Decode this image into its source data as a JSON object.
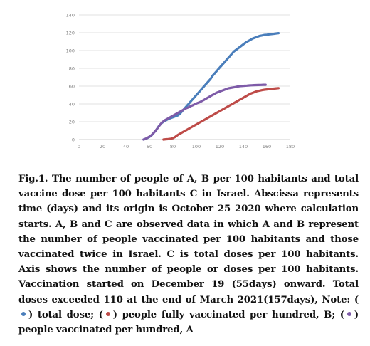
{
  "chart_data": {
    "type": "line",
    "xlim": [
      0,
      180
    ],
    "ylim": [
      0,
      140
    ],
    "x_ticks": [
      0,
      20,
      40,
      60,
      80,
      100,
      120,
      140,
      160,
      180
    ],
    "y_ticks": [
      0,
      20,
      40,
      60,
      80,
      100,
      120,
      140
    ],
    "grid": "horizontal",
    "legend": "none",
    "series": [
      {
        "key": "total_doses",
        "color": "#4a7ebb",
        "x": [
          55,
          58,
          60,
          62,
          64,
          66,
          68,
          70,
          72,
          74,
          76,
          78,
          80,
          82,
          84,
          86,
          88,
          90,
          92,
          94,
          96,
          98,
          100,
          102,
          104,
          106,
          108,
          110,
          112,
          114,
          116,
          118,
          120,
          122,
          124,
          126,
          128,
          130,
          132,
          134,
          136,
          138,
          140,
          142,
          144,
          146,
          148,
          150,
          152,
          154,
          156,
          158,
          160,
          162,
          164,
          166,
          168,
          170
        ],
        "y": [
          0,
          1.5,
          3,
          5,
          8,
          11,
          15,
          18,
          20,
          21.5,
          23,
          24,
          25,
          26,
          27,
          29,
          32,
          35,
          38,
          41,
          44,
          47,
          50,
          53,
          56,
          59,
          62,
          65,
          68,
          72,
          75,
          78,
          81,
          84,
          87,
          90,
          93,
          96,
          99,
          101,
          103,
          105,
          107,
          109,
          110.5,
          112,
          113.5,
          114.5,
          115.5,
          116.5,
          117,
          117.5,
          117.8,
          118.2,
          118.5,
          118.8,
          119.2,
          119.5
        ]
      },
      {
        "key": "fully_vaccinated_B",
        "color": "#be4b48",
        "x": [
          72,
          74,
          76,
          78,
          80,
          82,
          84,
          86,
          88,
          90,
          92,
          94,
          96,
          98,
          100,
          102,
          104,
          106,
          108,
          110,
          112,
          114,
          116,
          118,
          120,
          122,
          124,
          126,
          128,
          130,
          132,
          134,
          136,
          138,
          140,
          142,
          144,
          146,
          148,
          150,
          152,
          154,
          156,
          158,
          160,
          162,
          164,
          166,
          168,
          170
        ],
        "y": [
          0,
          0.3,
          0.5,
          0.8,
          1.5,
          3,
          5,
          6.5,
          8,
          9.5,
          11,
          12.5,
          14,
          15.5,
          17,
          18.5,
          20,
          21.5,
          23,
          24.5,
          26,
          27.5,
          29,
          30.5,
          32,
          33.5,
          35,
          36.5,
          38,
          39.5,
          41,
          42.5,
          44,
          45.5,
          47,
          48.5,
          50,
          51.5,
          52.5,
          53.5,
          54.5,
          55,
          55.5,
          56,
          56.3,
          56.6,
          56.9,
          57.2,
          57.5,
          57.8
        ]
      },
      {
        "key": "vaccinated_A",
        "color": "#7e5ba8",
        "x": [
          55,
          57,
          59,
          61,
          63,
          65,
          67,
          69,
          71,
          73,
          75,
          77,
          79,
          81,
          83,
          85,
          87,
          89,
          91,
          93,
          95,
          97,
          99,
          101,
          103,
          105,
          107,
          109,
          111,
          113,
          115,
          117,
          119,
          121,
          123,
          125,
          127,
          129,
          131,
          133,
          135,
          137,
          139,
          141,
          143,
          145,
          147,
          149,
          151,
          153,
          155,
          157,
          159
        ],
        "y": [
          0,
          1,
          2.5,
          4,
          6.5,
          9.5,
          13,
          16.5,
          19.5,
          21.5,
          23,
          24.5,
          26,
          27.5,
          29,
          30.5,
          32,
          33.5,
          35,
          36,
          37.5,
          38.5,
          40,
          41,
          42,
          43.5,
          45,
          46.5,
          48,
          49.5,
          51,
          52.5,
          53.5,
          54.5,
          55.5,
          56.5,
          57.5,
          58,
          58.5,
          59,
          59.5,
          60,
          60.2,
          60.4,
          60.6,
          60.8,
          61,
          61.1,
          61.2,
          61.3,
          61.4,
          61.5,
          61.5
        ]
      }
    ]
  },
  "caption": {
    "main": "Fig.1. The number of people of A, B per 100 habitants and total vaccine dose per 100 habitants C in Israel. Abscissa represents time (days) and its origin is October 25 2020 where calculation starts. A, B and C are observed data in which A and B represent the number of people vaccinated per 100 habitants and those vaccinated twice in Israel. C is total doses per 100 habitants. Axis shows the number of people or doses per 100 habitants. Vaccination started on December 19 (55days) onward. Total doses exceeded 110 at the end of March 2021(157days), Note:",
    "legend_total": ") total dose; (",
    "legend_fully": ") people fully vaccinated per hundred, B; (",
    "legend_vacc": ") people vaccinated per hundred, A",
    "open_paren": "("
  }
}
